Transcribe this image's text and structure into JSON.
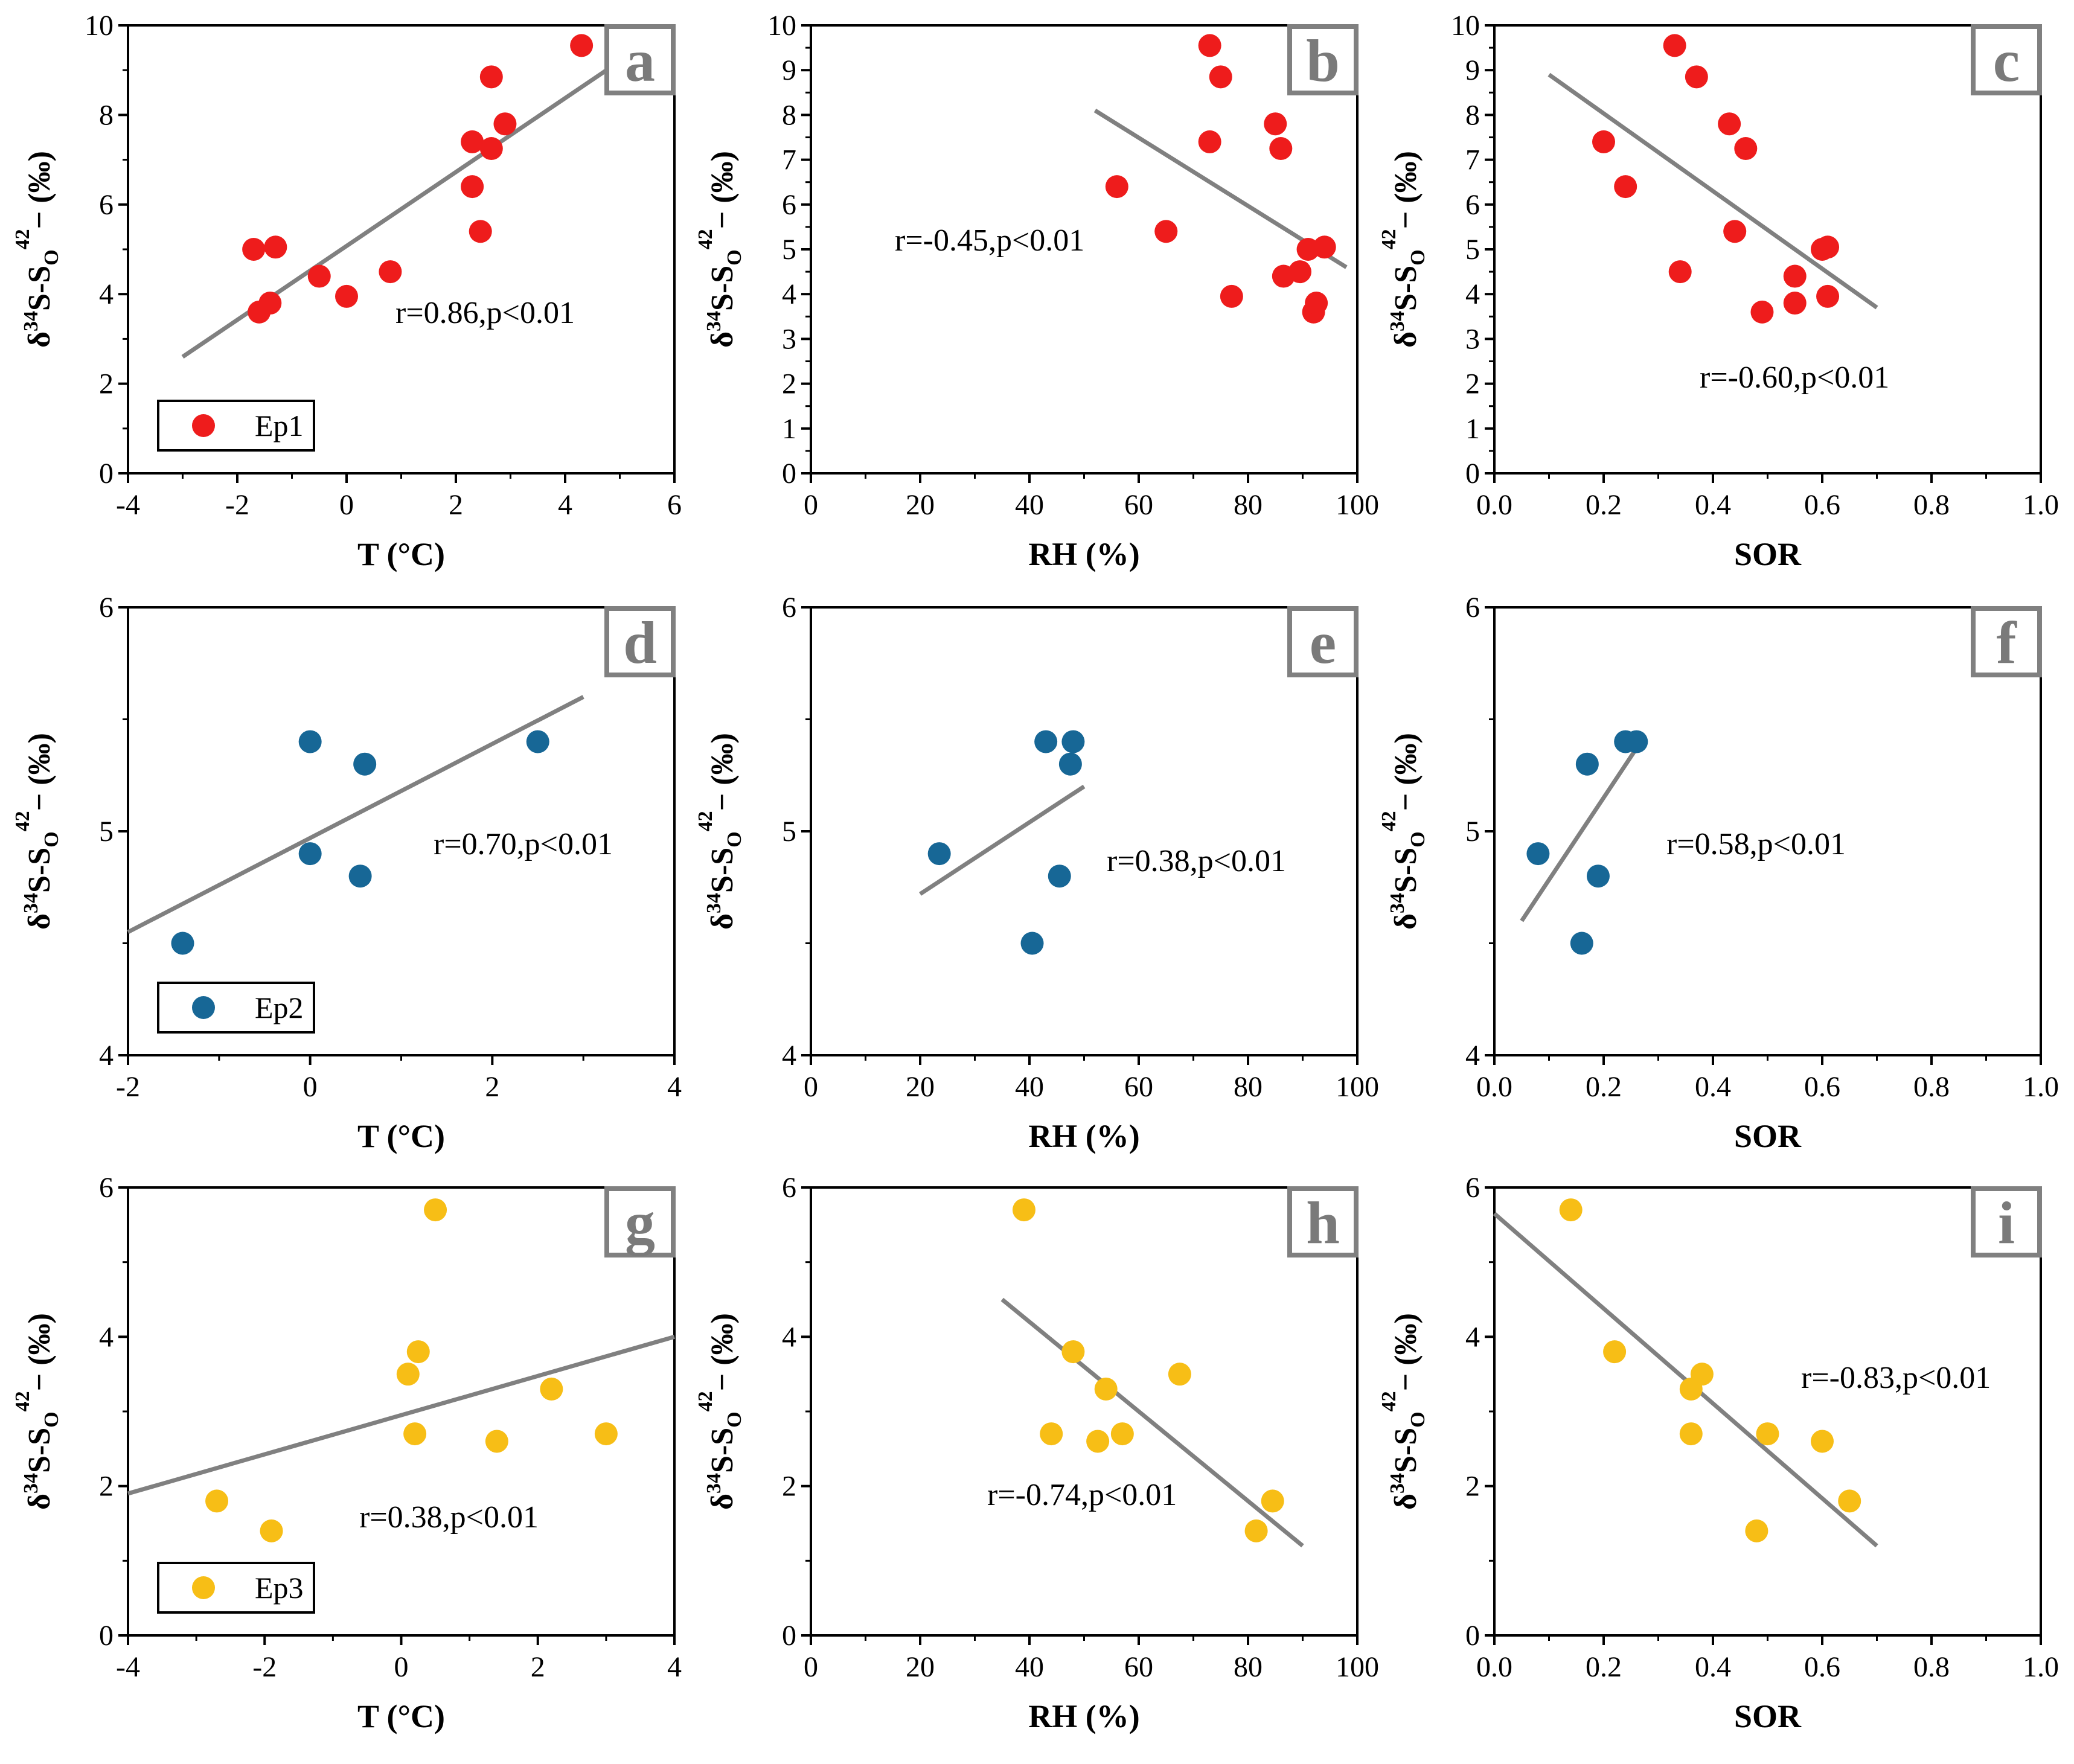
{
  "chart_data": [
    {
      "id": "a",
      "type": "scatter",
      "letter": "a",
      "ylabel": "δ34S-SO42− (‰)",
      "xlabel": "T (°C)",
      "xlim": [
        -4,
        6
      ],
      "ylim": [
        0,
        10
      ],
      "xticks": [
        "-4",
        "-2",
        "0",
        "2",
        "4",
        "6"
      ],
      "yticks": [
        "0",
        "2",
        "4",
        "6",
        "8",
        "10"
      ],
      "color": "#ee1c1c",
      "annotation": "r=0.86,p<0.01",
      "legend": "Ep1",
      "points": [
        [
          -1.7,
          5.0
        ],
        [
          -1.3,
          5.05
        ],
        [
          -1.6,
          3.6
        ],
        [
          -1.4,
          3.8
        ],
        [
          -0.5,
          4.4
        ],
        [
          0.0,
          3.95
        ],
        [
          0.8,
          4.5
        ],
        [
          2.3,
          7.4
        ],
        [
          2.3,
          6.4
        ],
        [
          2.45,
          5.4
        ],
        [
          2.65,
          7.25
        ],
        [
          2.65,
          8.85
        ],
        [
          2.9,
          7.8
        ],
        [
          4.3,
          9.55
        ]
      ],
      "fit": [
        [
          -3,
          2.6
        ],
        [
          5,
          9.2
        ]
      ]
    },
    {
      "id": "b",
      "type": "scatter",
      "letter": "b",
      "ylabel": "δ34S-SO42− (‰)",
      "xlabel": "RH (%)",
      "xlim": [
        0,
        100
      ],
      "ylim": [
        0,
        10
      ],
      "xticks": [
        "0",
        "20",
        "40",
        "60",
        "80",
        "100"
      ],
      "yticks": [
        "0",
        "1",
        "2",
        "3",
        "4",
        "5",
        "6",
        "7",
        "8",
        "9",
        "10"
      ],
      "color": "#ee1c1c",
      "annotation": "r=-0.45,p<0.01",
      "points": [
        [
          56,
          6.4
        ],
        [
          65,
          5.4
        ],
        [
          73,
          9.55
        ],
        [
          73,
          7.4
        ],
        [
          75,
          8.85
        ],
        [
          77,
          3.95
        ],
        [
          85,
          7.8
        ],
        [
          86,
          7.25
        ],
        [
          86.5,
          4.4
        ],
        [
          89.5,
          4.5
        ],
        [
          91,
          5.0
        ],
        [
          92,
          3.6
        ],
        [
          92.5,
          3.8
        ],
        [
          94,
          5.05
        ]
      ],
      "fit": [
        [
          52,
          8.1
        ],
        [
          98,
          4.6
        ]
      ]
    },
    {
      "id": "c",
      "type": "scatter",
      "letter": "c",
      "ylabel": "δ34S-SO42− (‰)",
      "xlabel": "SOR",
      "xlim": [
        0,
        1
      ],
      "ylim": [
        0,
        10
      ],
      "xticks": [
        "0.0",
        "0.2",
        "0.4",
        "0.6",
        "0.8",
        "1.0"
      ],
      "yticks": [
        "0",
        "1",
        "2",
        "3",
        "4",
        "5",
        "6",
        "7",
        "8",
        "9",
        "10"
      ],
      "color": "#ee1c1c",
      "annotation": "r=-0.60,p<0.01",
      "points": [
        [
          0.2,
          7.4
        ],
        [
          0.24,
          6.4
        ],
        [
          0.33,
          9.55
        ],
        [
          0.34,
          4.5
        ],
        [
          0.37,
          8.85
        ],
        [
          0.43,
          7.8
        ],
        [
          0.44,
          5.4
        ],
        [
          0.46,
          7.25
        ],
        [
          0.49,
          3.6
        ],
        [
          0.55,
          4.4
        ],
        [
          0.55,
          3.8
        ],
        [
          0.6,
          5.0
        ],
        [
          0.61,
          5.05
        ],
        [
          0.61,
          3.95
        ]
      ],
      "fit": [
        [
          0.1,
          8.9
        ],
        [
          0.7,
          3.7
        ]
      ]
    },
    {
      "id": "d",
      "type": "scatter",
      "letter": "d",
      "ylabel": "δ34S-SO42− (‰)",
      "xlabel": "T (°C)",
      "xlim": [
        -2,
        4
      ],
      "ylim": [
        4,
        6
      ],
      "xticks": [
        "-2",
        "0",
        "2",
        "4"
      ],
      "yticks": [
        "4",
        "5",
        "6"
      ],
      "color": "#176796",
      "annotation": "r=0.70,p<0.01",
      "legend": "Ep2",
      "points": [
        [
          -1.4,
          4.5
        ],
        [
          0.0,
          5.4
        ],
        [
          0.0,
          4.9
        ],
        [
          0.55,
          4.8
        ],
        [
          0.6,
          5.3
        ],
        [
          2.5,
          5.4
        ]
      ],
      "fit": [
        [
          -2,
          4.55
        ],
        [
          3,
          5.6
        ]
      ]
    },
    {
      "id": "e",
      "type": "scatter",
      "letter": "e",
      "ylabel": "δ34S-SO42− (‰)",
      "xlabel": "RH (%)",
      "xlim": [
        0,
        100
      ],
      "ylim": [
        4,
        6
      ],
      "xticks": [
        "0",
        "20",
        "40",
        "60",
        "80",
        "100"
      ],
      "yticks": [
        "4",
        "5",
        "6"
      ],
      "color": "#176796",
      "annotation": "r=0.38,p<0.01",
      "points": [
        [
          23.5,
          4.9
        ],
        [
          40.5,
          4.5
        ],
        [
          43,
          5.4
        ],
        [
          45.5,
          4.8
        ],
        [
          47.5,
          5.3
        ],
        [
          48,
          5.4
        ]
      ],
      "fit": [
        [
          20,
          4.72
        ],
        [
          50,
          5.2
        ]
      ]
    },
    {
      "id": "f",
      "type": "scatter",
      "letter": "f",
      "ylabel": "δ34S-SO42− (‰)",
      "xlabel": "SOR",
      "xlim": [
        0,
        1
      ],
      "ylim": [
        4,
        6
      ],
      "xticks": [
        "0.0",
        "0.2",
        "0.4",
        "0.6",
        "0.8",
        "1.0"
      ],
      "yticks": [
        "4",
        "5",
        "6"
      ],
      "color": "#176796",
      "annotation": "r=0.58,p<0.01",
      "points": [
        [
          0.08,
          4.9
        ],
        [
          0.16,
          4.5
        ],
        [
          0.17,
          5.3
        ],
        [
          0.19,
          4.8
        ],
        [
          0.24,
          5.4
        ],
        [
          0.26,
          5.4
        ]
      ],
      "fit": [
        [
          0.05,
          4.6
        ],
        [
          0.26,
          5.37
        ]
      ]
    },
    {
      "id": "g",
      "type": "scatter",
      "letter": "g",
      "ylabel": "δ34S-SO42− (‰)",
      "xlabel": "T (°C)",
      "xlim": [
        -4,
        4
      ],
      "ylim": [
        0,
        6
      ],
      "xticks": [
        "-4",
        "-2",
        "0",
        "2",
        "4"
      ],
      "yticks": [
        "0",
        "2",
        "4",
        "6"
      ],
      "color": "#f7be16",
      "annotation": "r=0.38,p<0.01",
      "legend": "Ep3",
      "points": [
        [
          -2.7,
          1.8
        ],
        [
          -1.9,
          1.4
        ],
        [
          0.1,
          3.5
        ],
        [
          0.2,
          2.7
        ],
        [
          0.25,
          3.8
        ],
        [
          0.5,
          5.7
        ],
        [
          1.4,
          2.6
        ],
        [
          2.2,
          3.3
        ],
        [
          3.0,
          2.7
        ]
      ],
      "fit": [
        [
          -4,
          1.9
        ],
        [
          4,
          4.0
        ]
      ]
    },
    {
      "id": "h",
      "type": "scatter",
      "letter": "h",
      "ylabel": "δ34S-SO42− (‰)",
      "xlabel": "RH (%)",
      "xlim": [
        0,
        100
      ],
      "ylim": [
        0,
        6
      ],
      "xticks": [
        "0",
        "20",
        "40",
        "60",
        "80",
        "100"
      ],
      "yticks": [
        "0",
        "2",
        "4",
        "6"
      ],
      "color": "#f7be16",
      "annotation": "r=-0.74,p<0.01",
      "points": [
        [
          39,
          5.7
        ],
        [
          44,
          2.7
        ],
        [
          48,
          3.8
        ],
        [
          52.5,
          2.6
        ],
        [
          54,
          3.3
        ],
        [
          57,
          2.7
        ],
        [
          67.5,
          3.5
        ],
        [
          81.5,
          1.4
        ],
        [
          84.5,
          1.8
        ]
      ],
      "fit": [
        [
          35,
          4.5
        ],
        [
          90,
          1.2
        ]
      ]
    },
    {
      "id": "i",
      "type": "scatter",
      "letter": "i",
      "ylabel": "δ34S-SO42− (‰)",
      "xlabel": "SOR",
      "xlim": [
        0,
        1
      ],
      "ylim": [
        0,
        6
      ],
      "xticks": [
        "0.0",
        "0.2",
        "0.4",
        "0.6",
        "0.8",
        "1.0"
      ],
      "yticks": [
        "0",
        "2",
        "4",
        "6"
      ],
      "color": "#f7be16",
      "annotation": "r=-0.83,p<0.01",
      "points": [
        [
          0.14,
          5.7
        ],
        [
          0.22,
          3.8
        ],
        [
          0.36,
          3.3
        ],
        [
          0.36,
          2.7
        ],
        [
          0.38,
          3.5
        ],
        [
          0.48,
          1.4
        ],
        [
          0.5,
          2.7
        ],
        [
          0.6,
          2.6
        ],
        [
          0.65,
          1.8
        ]
      ],
      "fit": [
        [
          0.0,
          5.65
        ],
        [
          0.7,
          1.2
        ]
      ]
    }
  ]
}
